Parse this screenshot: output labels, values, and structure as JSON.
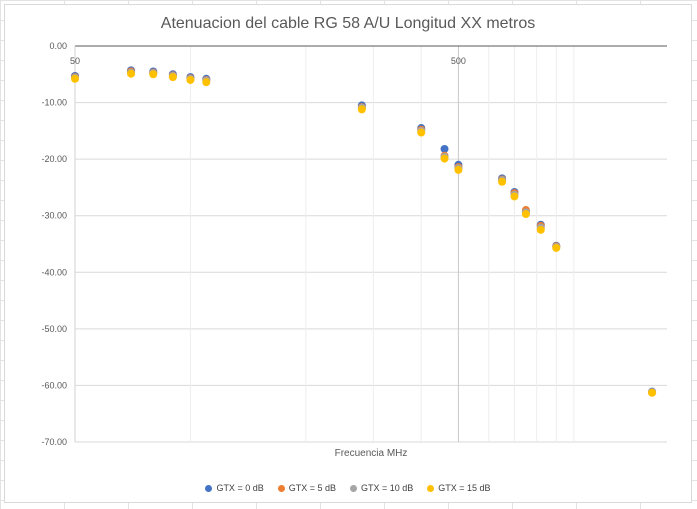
{
  "chart_data": {
    "type": "scatter",
    "title": "Atenuacion del cable RG 58 A/U Longitud XX metros",
    "xlabel": "Frecuencia MHz",
    "ylabel": "",
    "x_scale": "log",
    "x_ticks": [
      "50",
      "500"
    ],
    "xlim": [
      50,
      1750
    ],
    "ylim": [
      -70,
      0
    ],
    "y_ticks": [
      "0.00",
      "-10.00",
      "-20.00",
      "-30.00",
      "-40.00",
      "-50.00",
      "-60.00",
      "-70.00"
    ],
    "grid": true,
    "legend_position": "bottom",
    "x": [
      50,
      70,
      80,
      90,
      100,
      110,
      280,
      400,
      460,
      500,
      650,
      700,
      750,
      820,
      900,
      1600
    ],
    "series": [
      {
        "name": "GTX = 0 dB",
        "color": "#4472C4",
        "values": [
          -5.3,
          -4.3,
          -4.5,
          -5.0,
          -5.5,
          -5.8,
          -10.5,
          -14.5,
          -18.2,
          -21.0,
          -23.4,
          -25.8,
          -29.2,
          -31.6,
          -35.3,
          -61.1
        ]
      },
      {
        "name": "GTX = 5 dB",
        "color": "#ED7D31",
        "values": [
          -5.5,
          -4.5,
          -4.7,
          -5.2,
          -5.7,
          -6.0,
          -10.8,
          -14.8,
          -19.4,
          -21.4,
          -23.6,
          -26.0,
          -29.0,
          -31.8,
          -35.4,
          -61.2
        ]
      },
      {
        "name": "GTX = 10 dB",
        "color": "#A5A5A5",
        "values": [
          -5.6,
          -4.7,
          -4.8,
          -5.3,
          -5.8,
          -6.1,
          -10.9,
          -15.0,
          -19.6,
          -21.6,
          -23.7,
          -26.3,
          -29.4,
          -32.1,
          -35.5,
          -61.2
        ]
      },
      {
        "name": "GTX = 15 dB",
        "color": "#FFC000",
        "values": [
          -5.8,
          -4.9,
          -5.0,
          -5.5,
          -6.0,
          -6.4,
          -11.2,
          -15.3,
          -19.9,
          -21.9,
          -24.0,
          -26.6,
          -29.7,
          -32.5,
          -35.7,
          -61.3
        ]
      }
    ]
  }
}
